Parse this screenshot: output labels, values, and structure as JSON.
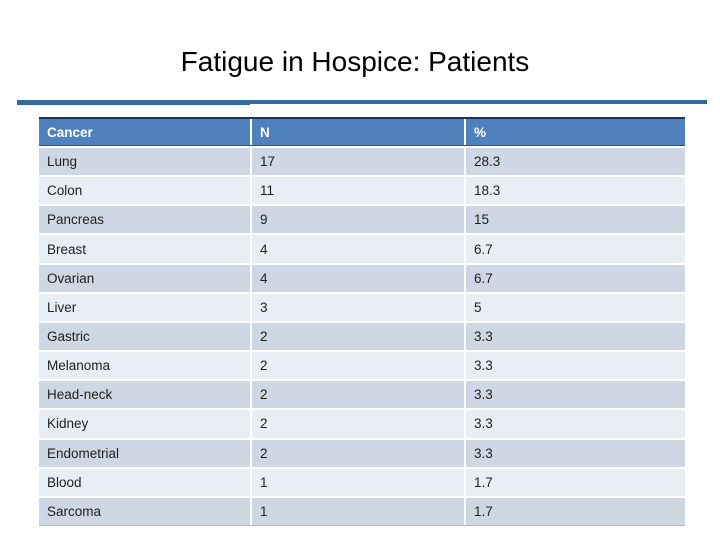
{
  "slide": {
    "title": "Fatigue in Hospice: Patients"
  },
  "table": {
    "columns": [
      "Cancer",
      "N",
      "%"
    ],
    "rows": [
      [
        "Lung",
        "17",
        "28.3"
      ],
      [
        "Colon",
        "11",
        "18.3"
      ],
      [
        "Pancreas",
        "9",
        "15"
      ],
      [
        "Breast",
        "4",
        "6.7"
      ],
      [
        "Ovarian",
        "4",
        "6.7"
      ],
      [
        "Liver",
        "3",
        "5"
      ],
      [
        "Gastric",
        "2",
        "3.3"
      ],
      [
        "Melanoma",
        "2",
        "3.3"
      ],
      [
        "Head-neck",
        "2",
        "3.3"
      ],
      [
        "Kidney",
        "2",
        "3.3"
      ],
      [
        "Endometrial",
        "2",
        "3.3"
      ],
      [
        "Blood",
        "1",
        "1.7"
      ],
      [
        "Sarcoma",
        "1",
        "1.7"
      ]
    ]
  },
  "colors": {
    "title_text": "#000000",
    "rule_blue": "#35689c",
    "header_bg": "#4f81bd",
    "header_text": "#ffffff",
    "header_border": "#17375e",
    "band_dark": "#cfd6e4",
    "band_light": "#e9edf4",
    "body_text": "#1f1f1f"
  }
}
